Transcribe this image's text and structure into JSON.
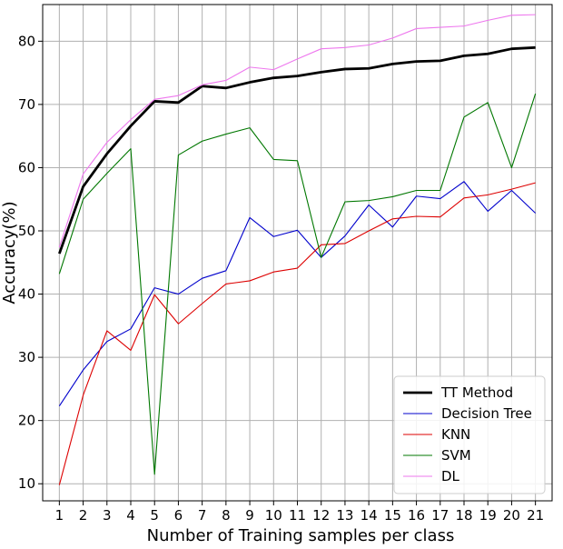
{
  "chart_data": {
    "type": "line",
    "xlabel": "Number of Training samples per class",
    "ylabel": "Accuracy(%)",
    "x": [
      1,
      2,
      3,
      4,
      5,
      6,
      7,
      8,
      9,
      10,
      11,
      12,
      13,
      14,
      15,
      16,
      17,
      18,
      19,
      20,
      21
    ],
    "xlim": [
      0.3,
      21.7
    ],
    "ylim": [
      7.3,
      85.8
    ],
    "yticks": [
      10,
      20,
      30,
      40,
      50,
      60,
      70,
      80
    ],
    "grid": true,
    "legend_position": "lower-right",
    "series": [
      {
        "name": "TT Method",
        "color": "#000000",
        "stroke": "heavy",
        "values": [
          46.4,
          57.0,
          62.2,
          66.6,
          70.5,
          70.3,
          72.9,
          72.6,
          73.5,
          74.2,
          74.5,
          75.1,
          75.6,
          75.7,
          76.4,
          76.8,
          76.9,
          77.7,
          78.0,
          78.8,
          79.0
        ]
      },
      {
        "name": "Decision Tree",
        "color": "#0000cc",
        "stroke": "thin",
        "values": [
          22.3,
          28.0,
          32.5,
          34.5,
          41.0,
          40.0,
          42.5,
          43.7,
          52.1,
          49.1,
          50.1,
          45.8,
          49.2,
          54.1,
          50.6,
          55.5,
          55.1,
          57.8,
          53.1,
          56.4,
          52.8
        ]
      },
      {
        "name": "KNN",
        "color": "#dd0000",
        "stroke": "thin",
        "values": [
          9.8,
          24.0,
          34.2,
          31.1,
          39.9,
          35.3,
          38.5,
          41.6,
          42.1,
          43.5,
          44.1,
          47.8,
          48.0,
          50.0,
          51.9,
          52.3,
          52.2,
          55.2,
          55.7,
          56.6,
          57.6
        ]
      },
      {
        "name": "SVM",
        "color": "#007700",
        "stroke": "thin",
        "values": [
          43.2,
          55.0,
          59.1,
          63.0,
          11.5,
          62.0,
          64.2,
          65.3,
          66.3,
          61.3,
          61.1,
          45.8,
          54.6,
          54.8,
          55.4,
          56.4,
          56.4,
          68.0,
          70.3,
          60.0,
          71.7
        ]
      },
      {
        "name": "DL",
        "color": "#ee77ee",
        "stroke": "thin",
        "values": [
          47.4,
          59.0,
          64.0,
          67.6,
          70.8,
          71.4,
          73.1,
          73.8,
          75.9,
          75.5,
          77.2,
          78.8,
          79.0,
          79.4,
          80.5,
          82.0,
          82.2,
          82.4,
          83.3,
          84.1,
          84.2
        ]
      }
    ]
  }
}
